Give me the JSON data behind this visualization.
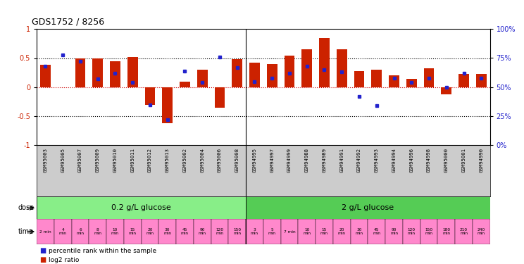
{
  "title": "GDS1752 / 8256",
  "samples": [
    "GSM95003",
    "GSM95005",
    "GSM95007",
    "GSM95009",
    "GSM95010",
    "GSM95011",
    "GSM95012",
    "GSM95013",
    "GSM95002",
    "GSM95004",
    "GSM95006",
    "GSM95008",
    "GSM94995",
    "GSM94997",
    "GSM94999",
    "GSM94988",
    "GSM94989",
    "GSM94991",
    "GSM94992",
    "GSM94993",
    "GSM94994",
    "GSM94996",
    "GSM94998",
    "GSM95000",
    "GSM95001",
    "GSM94990"
  ],
  "log2_ratio": [
    0.38,
    0.0,
    0.5,
    0.5,
    0.45,
    0.52,
    -0.3,
    -0.62,
    0.1,
    0.3,
    -0.35,
    0.48,
    0.42,
    0.4,
    0.54,
    0.65,
    0.85,
    0.65,
    0.28,
    0.3,
    0.2,
    0.14,
    0.32,
    -0.12,
    0.23,
    0.23
  ],
  "percentile": [
    68,
    78,
    72,
    57,
    62,
    54,
    35,
    22,
    64,
    54,
    76,
    67,
    55,
    58,
    62,
    68,
    65,
    63,
    42,
    34,
    58,
    54,
    58,
    50,
    62,
    58
  ],
  "time_labels_full": [
    "2 min",
    "4\nmin",
    "6\nmin",
    "8\nmin",
    "10\nmin",
    "15\nmin",
    "20\nmin",
    "30\nmin",
    "45\nmin",
    "90\nmin",
    "120\nmin",
    "150\nmin",
    "3\nmin",
    "5\nmin",
    "7 min",
    "10\nmin",
    "15\nmin",
    "20\nmin",
    "30\nmin",
    "45\nmin",
    "90\nmin",
    "120\nmin",
    "150\nmin",
    "180\nmin",
    "210\nmin",
    "240\nmin"
  ],
  "dose_label1": "0.2 g/L glucose",
  "dose_label2": "2 g/L glucose",
  "n_group1": 12,
  "n_group2": 14,
  "ylim_left": [
    -1,
    1
  ],
  "ylim_right": [
    0,
    100
  ],
  "yticks_left": [
    -1,
    -0.5,
    0,
    0.5,
    1
  ],
  "ytick_labels_left": [
    "-1",
    "-0.5",
    "0",
    "0.5",
    "1"
  ],
  "yticks_right": [
    0,
    25,
    50,
    75,
    100
  ],
  "ytick_labels_right": [
    "0%",
    "25%",
    "50%",
    "75%",
    "100%"
  ],
  "bar_color": "#cc2200",
  "dot_color": "#2222cc",
  "group1_color": "#88ee88",
  "group2_color": "#55cc55",
  "time_color": "#ff88cc",
  "tick_color_left": "#cc2200",
  "tick_color_right": "#2222cc",
  "bg_color": "#ffffff",
  "sample_bg": "#cccccc",
  "hline_colors": [
    "#cc0000",
    "#000000",
    "#000000"
  ],
  "hline_values": [
    0,
    0.5,
    -0.5
  ],
  "separator": 11.5
}
